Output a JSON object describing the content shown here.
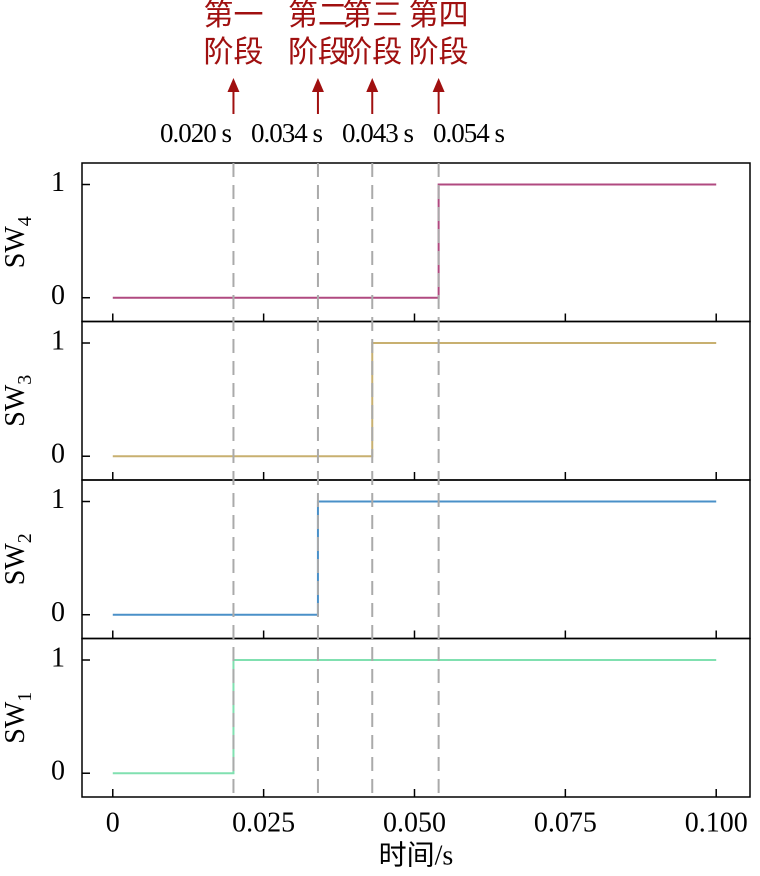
{
  "chart_data": [
    {
      "type": "line",
      "ylabel": "SW",
      "ylabel_subscript": "4",
      "x": [
        0,
        0.054,
        0.054,
        0.1
      ],
      "values": [
        0,
        0,
        1,
        1
      ],
      "color": "#b04a80",
      "ylim": [
        -0.21,
        1.19
      ],
      "yticks": [
        0,
        1
      ],
      "annotations": [
        {
          "label_lines": [
            "第一",
            "阶段"
          ],
          "time": 0.02,
          "time_label": "0.020 s"
        },
        {
          "label_lines": [
            "第二",
            "阶段"
          ],
          "time": 0.034,
          "time_label": "0.034 s"
        },
        {
          "label_lines": [
            "第三",
            "阶段"
          ],
          "time": 0.043,
          "time_label": "0.043 s"
        },
        {
          "label_lines": [
            "第四",
            "阶段"
          ],
          "time": 0.054,
          "time_label": "0.054 s"
        }
      ],
      "annotation_color": "#a01010",
      "marker_line_color": "#aaaaaa"
    },
    {
      "type": "line",
      "ylabel": "SW",
      "ylabel_subscript": "3",
      "x": [
        0,
        0.043,
        0.043,
        0.1
      ],
      "values": [
        0,
        0,
        1,
        1
      ],
      "color": "#c8b070",
      "ylim": [
        -0.21,
        1.19
      ],
      "yticks": [
        0,
        1
      ]
    },
    {
      "type": "line",
      "ylabel": "SW",
      "ylabel_subscript": "2",
      "x": [
        0,
        0.034,
        0.034,
        0.1
      ],
      "values": [
        0,
        0,
        1,
        1
      ],
      "color": "#4a90c8",
      "ylim": [
        -0.21,
        1.19
      ],
      "yticks": [
        0,
        1
      ]
    },
    {
      "type": "line",
      "ylabel": "SW",
      "ylabel_subscript": "1",
      "x": [
        0,
        0.02,
        0.02,
        0.1
      ],
      "values": [
        0,
        0,
        1,
        1
      ],
      "color": "#80e0b0",
      "ylim": [
        -0.21,
        1.19
      ],
      "yticks": [
        0,
        1
      ],
      "xlabel": "时间/s",
      "xlim": [
        -0.0051,
        0.1056
      ],
      "xticks": [
        0,
        0.025,
        {
          "value": 0.05,
          "label": "0.050"
        },
        0.075,
        {
          "value": 0.1,
          "label": "0.100"
        }
      ]
    }
  ]
}
